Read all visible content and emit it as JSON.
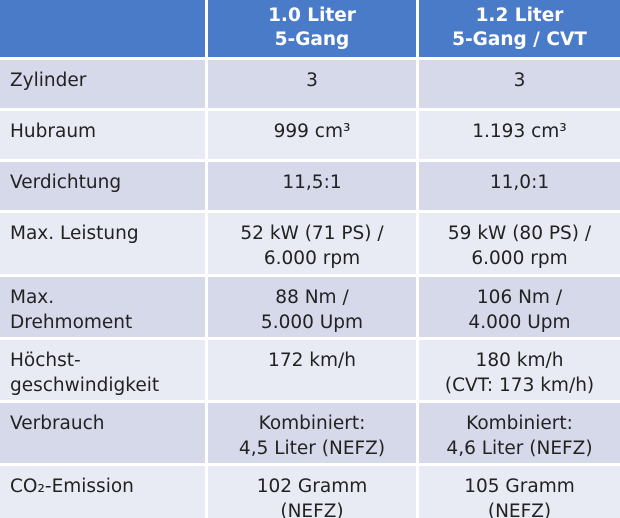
{
  "table": {
    "header": [
      [
        "1.0 Liter",
        "5-Gang"
      ],
      [
        "1.2 Liter",
        "5-Gang / CVT"
      ]
    ],
    "rows": [
      {
        "label": [
          "Zylinder"
        ],
        "cells": [
          [
            "3"
          ],
          [
            "3"
          ]
        ]
      },
      {
        "label": [
          "Hubraum"
        ],
        "cells": [
          [
            "999 cm³"
          ],
          [
            "1.193 cm³"
          ]
        ]
      },
      {
        "label": [
          "Verdichtung"
        ],
        "cells": [
          [
            "11,5:1"
          ],
          [
            "11,0:1"
          ]
        ]
      },
      {
        "label": [
          "Max. Leistung"
        ],
        "cells": [
          [
            "52 kW (71 PS) /",
            "6.000 rpm"
          ],
          [
            "59 kW (80 PS) /",
            "6.000 rpm"
          ]
        ]
      },
      {
        "label": [
          "Max.",
          "Drehmoment"
        ],
        "cells": [
          [
            "88 Nm /",
            "5.000 Upm"
          ],
          [
            "106 Nm /",
            "4.000 Upm"
          ]
        ]
      },
      {
        "label": [
          "Höchst-",
          "geschwindigkeit"
        ],
        "cells": [
          [
            "172 km/h"
          ],
          [
            "180 km/h",
            "(CVT: 173 km/h)"
          ]
        ]
      },
      {
        "label": [
          "Verbrauch"
        ],
        "cells": [
          [
            "Kombiniert:",
            "4,5 Liter (NEFZ)"
          ],
          [
            "Kombiniert:",
            "4,6 Liter (NEFZ)"
          ]
        ]
      },
      {
        "label": [
          "CO₂-Emission"
        ],
        "cells": [
          [
            "102 Gramm",
            "(NEFZ)"
          ],
          [
            "105 Gramm",
            "(NEFZ)"
          ]
        ]
      }
    ]
  }
}
